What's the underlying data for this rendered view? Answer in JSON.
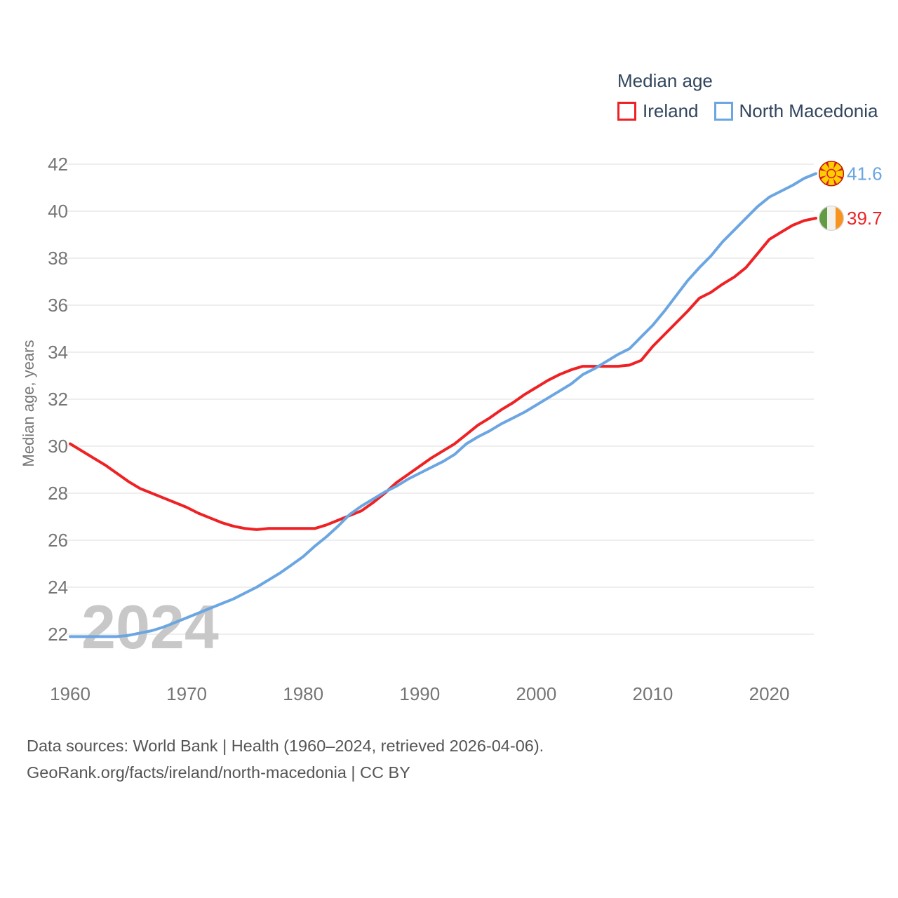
{
  "legend": {
    "title": "Median age",
    "items": [
      {
        "label": "Ireland",
        "color": "#ee2124"
      },
      {
        "label": "North Macedonia",
        "color": "#6ba6e2"
      }
    ]
  },
  "watermark": "2024",
  "footer": {
    "line1": "Data sources: World Bank | Health (1960–2024, retrieved 2026-04-06).",
    "line2": "GeoRank.org/facts/ireland/north-macedonia | CC BY"
  },
  "chart_data": {
    "type": "line",
    "title": "Median age",
    "ylabel": "Median age, years",
    "xlabel": "",
    "grid": "horizontal",
    "legend_position": "top-right",
    "xlim": [
      1960,
      2024
    ],
    "ylim": [
      21.5,
      42.5
    ],
    "x_ticks": [
      1960,
      1970,
      1980,
      1990,
      2000,
      2010,
      2020
    ],
    "y_ticks": [
      22,
      24,
      26,
      28,
      30,
      32,
      34,
      36,
      38,
      40,
      42
    ],
    "x": [
      1960,
      1961,
      1962,
      1963,
      1964,
      1965,
      1966,
      1967,
      1968,
      1969,
      1970,
      1971,
      1972,
      1973,
      1974,
      1975,
      1976,
      1977,
      1978,
      1979,
      1980,
      1981,
      1982,
      1983,
      1984,
      1985,
      1986,
      1987,
      1988,
      1989,
      1990,
      1991,
      1992,
      1993,
      1994,
      1995,
      1996,
      1997,
      1998,
      1999,
      2000,
      2001,
      2002,
      2003,
      2004,
      2005,
      2006,
      2007,
      2008,
      2009,
      2010,
      2011,
      2012,
      2013,
      2014,
      2015,
      2016,
      2017,
      2018,
      2019,
      2020,
      2021,
      2022,
      2023,
      2024
    ],
    "series": [
      {
        "name": "Ireland",
        "color": "#ee2124",
        "flag": "ireland",
        "end_label": "39.7",
        "end_value": 39.7,
        "values": [
          30.1,
          29.8,
          29.5,
          29.2,
          28.85,
          28.5,
          28.2,
          28.0,
          27.8,
          27.6,
          27.4,
          27.15,
          26.95,
          26.75,
          26.6,
          26.5,
          26.45,
          26.5,
          26.5,
          26.5,
          26.5,
          26.5,
          26.65,
          26.85,
          27.05,
          27.25,
          27.6,
          28.0,
          28.45,
          28.8,
          29.15,
          29.5,
          29.8,
          30.1,
          30.5,
          30.9,
          31.2,
          31.55,
          31.85,
          32.2,
          32.5,
          32.8,
          33.05,
          33.25,
          33.4,
          33.4,
          33.4,
          33.4,
          33.45,
          33.65,
          34.25,
          34.75,
          35.25,
          35.75,
          36.3,
          36.55,
          36.9,
          37.2,
          37.6,
          38.2,
          38.8,
          39.1,
          39.4,
          39.6,
          39.7
        ]
      },
      {
        "name": "North Macedonia",
        "color": "#6ba6e2",
        "flag": "north-macedonia",
        "end_label": "41.6",
        "end_value": 41.6,
        "values": [
          21.9,
          21.9,
          21.9,
          21.9,
          21.9,
          21.95,
          22.05,
          22.15,
          22.3,
          22.5,
          22.7,
          22.9,
          23.1,
          23.3,
          23.5,
          23.75,
          24.0,
          24.3,
          24.6,
          24.95,
          25.3,
          25.75,
          26.15,
          26.6,
          27.1,
          27.45,
          27.75,
          28.05,
          28.3,
          28.6,
          28.85,
          29.1,
          29.35,
          29.65,
          30.1,
          30.4,
          30.65,
          30.95,
          31.2,
          31.45,
          31.75,
          32.05,
          32.35,
          32.65,
          33.05,
          33.3,
          33.6,
          33.9,
          34.15,
          34.65,
          35.15,
          35.75,
          36.4,
          37.05,
          37.6,
          38.1,
          38.7,
          39.2,
          39.7,
          40.2,
          40.6,
          40.85,
          41.1,
          41.4,
          41.6
        ]
      }
    ]
  }
}
